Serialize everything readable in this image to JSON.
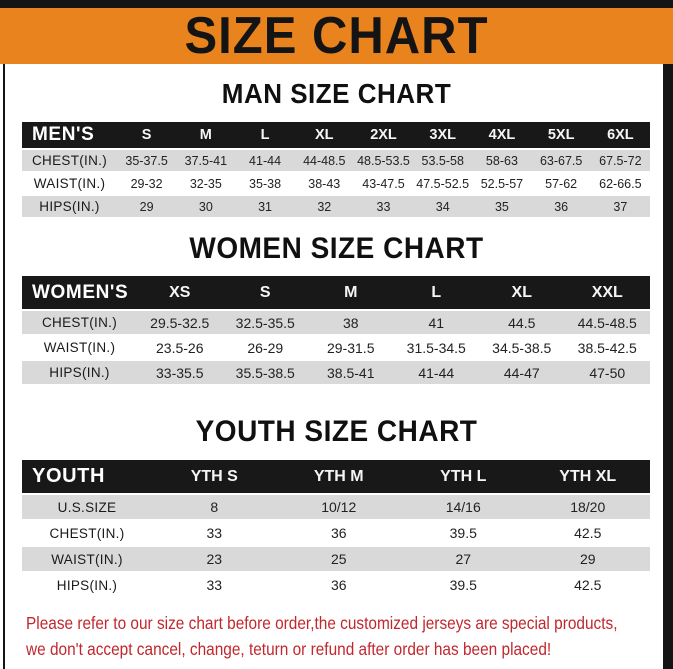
{
  "banner": {
    "title": "SIZE CHART"
  },
  "sections": [
    {
      "title": "MAN SIZE CHART",
      "header_label": "MEN'S",
      "columns": [
        "S",
        "M",
        "L",
        "XL",
        "2XL",
        "3XL",
        "4XL",
        "5XL",
        "6XL"
      ],
      "rows": [
        {
          "label": "CHEST(IN.)",
          "shade": true,
          "values": [
            "35-37.5",
            "37.5-41",
            "41-44",
            "44-48.5",
            "48.5-53.5",
            "53.5-58",
            "58-63",
            "63-67.5",
            "67.5-72"
          ]
        },
        {
          "label": "WAIST(IN.)",
          "shade": false,
          "values": [
            "29-32",
            "32-35",
            "35-38",
            "38-43",
            "43-47.5",
            "47.5-52.5",
            "52.5-57",
            "57-62",
            "62-66.5"
          ]
        },
        {
          "label": "HIPS(IN.)",
          "shade": true,
          "values": [
            "29",
            "30",
            "31",
            "32",
            "33",
            "34",
            "35",
            "36",
            "37"
          ]
        }
      ]
    },
    {
      "title": "WOMEN SIZE CHART",
      "header_label": "WOMEN'S",
      "columns": [
        "XS",
        "S",
        "M",
        "L",
        "XL",
        "XXL"
      ],
      "rows": [
        {
          "label": "CHEST(IN.)",
          "shade": true,
          "values": [
            "29.5-32.5",
            "32.5-35.5",
            "38",
            "41",
            "44.5",
            "44.5-48.5"
          ]
        },
        {
          "label": "WAIST(IN.)",
          "shade": false,
          "values": [
            "23.5-26",
            "26-29",
            "29-31.5",
            "31.5-34.5",
            "34.5-38.5",
            "38.5-42.5"
          ]
        },
        {
          "label": "HIPS(IN.)",
          "shade": true,
          "values": [
            "33-35.5",
            "35.5-38.5",
            "38.5-41",
            "41-44",
            "44-47",
            "47-50"
          ]
        }
      ]
    },
    {
      "title": "YOUTH SIZE CHART",
      "header_label": "YOUTH",
      "columns": [
        "YTH S",
        "YTH M",
        "YTH L",
        "YTH XL"
      ],
      "rows": [
        {
          "label": "U.S.SIZE",
          "shade": true,
          "values": [
            "8",
            "10/12",
            "14/16",
            "18/20"
          ]
        },
        {
          "label": "CHEST(IN.)",
          "shade": false,
          "values": [
            "33",
            "36",
            "39.5",
            "42.5"
          ]
        },
        {
          "label": "WAIST(IN.)",
          "shade": true,
          "values": [
            "23",
            "25",
            "27",
            "29"
          ]
        },
        {
          "label": "HIPS(IN.)",
          "shade": false,
          "values": [
            "33",
            "36",
            "39.5",
            "42.5"
          ]
        }
      ]
    }
  ],
  "footer": {
    "line1": "Please refer to our size chart before order,the customized jerseys are special products,",
    "line2": "we don't accept cancel, change, teturn or refund after order has been placed!"
  },
  "colors": {
    "banner_orange": "#e8831d",
    "frame_black": "#141414",
    "header_black": "#181818",
    "row_gray": "#d9d9d9",
    "note_red": "#c1272d"
  }
}
